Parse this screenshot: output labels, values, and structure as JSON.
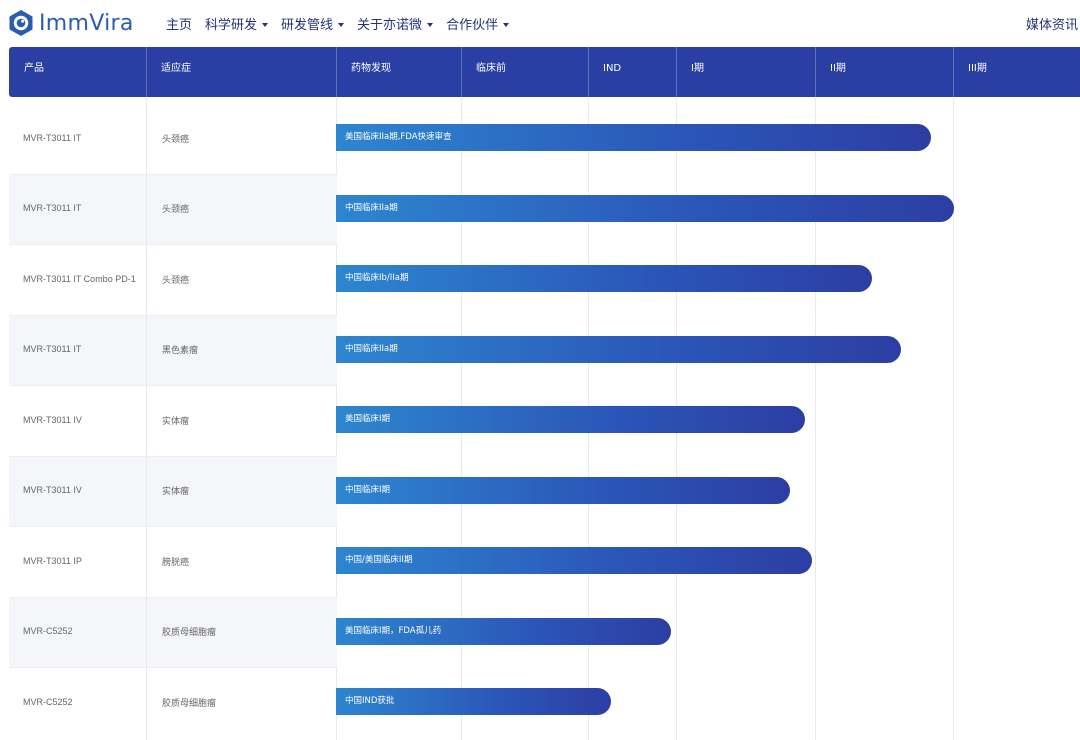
{
  "brand": {
    "name": "ImmVira",
    "color": "#2a5db0"
  },
  "nav": {
    "items": [
      {
        "label": "主页",
        "dropdown": false
      },
      {
        "label": "科学研发",
        "dropdown": true
      },
      {
        "label": "研发管线",
        "dropdown": true
      },
      {
        "label": "关于亦诺微",
        "dropdown": true
      },
      {
        "label": "合作伙伴",
        "dropdown": true
      }
    ],
    "media": "媒体资讯"
  },
  "table": {
    "header_color": "#2a3fa3",
    "columns": [
      "产品",
      "适应症",
      "药物发现",
      "临床前",
      "IND",
      "I期",
      "II期",
      "III期"
    ],
    "rows": [
      {
        "product": "MVR-T3011 IT",
        "indication": "头颈癌",
        "status": "美国临床IIa期,FDA快速审查",
        "progress": 0.8
      },
      {
        "product": "MVR-T3011 IT",
        "indication": "头颈癌",
        "status": "中国临床IIa期",
        "progress": 0.83
      },
      {
        "product": "MVR-T3011 IT Combo PD-1",
        "indication": "头颈癌",
        "status": "中国临床Ib/IIa期",
        "progress": 0.72
      },
      {
        "product": "MVR-T3011 IT",
        "indication": "黑色素瘤",
        "status": "中国临床IIa期",
        "progress": 0.76
      },
      {
        "product": "MVR-T3011 IV",
        "indication": "实体瘤",
        "status": "美国临床I期",
        "progress": 0.63
      },
      {
        "product": "MVR-T3011 IV",
        "indication": "实体瘤",
        "status": "中国临床I期",
        "progress": 0.61
      },
      {
        "product": "MVR-T3011 IP",
        "indication": "膀胱癌",
        "status": "中国/美国临床II期",
        "progress": 0.64
      },
      {
        "product": "MVR-C5252",
        "indication": "胶质母细胞瘤",
        "status": "美国临床I期，FDA孤儿药",
        "progress": 0.45
      },
      {
        "product": "MVR-C5252",
        "indication": "胶质母细胞瘤",
        "status": "中国IND获批",
        "progress": 0.37
      }
    ]
  }
}
